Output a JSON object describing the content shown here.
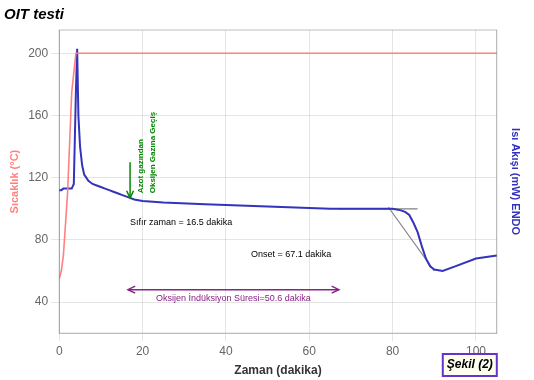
{
  "chart_data": {
    "type": "line",
    "title": "OIT testi",
    "xlabel": "Zaman (dakika)",
    "ylabel": "Sıcaklık (°C)",
    "y2label": "Isı Akışı (mW) ENDO",
    "xlim": [
      0,
      105
    ],
    "ylim": [
      20,
      215
    ],
    "xticks": [
      0,
      20,
      40,
      60,
      80,
      100
    ],
    "yticks": [
      40,
      80,
      120,
      160,
      200
    ],
    "y2lim": [
      20,
      215
    ],
    "y2ticks": [],
    "grid": true,
    "series": [
      {
        "color": "#FF8080",
        "x": [
          0,
          0.5,
          1,
          2,
          3,
          4,
          5,
          5.5,
          6,
          105
        ],
        "values": [
          55,
          60,
          70,
          110,
          175,
          200,
          200,
          200,
          200,
          200
        ]
      },
      {
        "color": "#3333BB",
        "x": [
          0,
          0.5,
          1,
          2,
          3,
          3.5,
          4,
          4.3,
          4.6,
          5,
          5.5,
          6,
          7,
          8,
          9,
          10,
          11,
          12,
          13,
          14,
          15,
          16,
          17,
          18,
          20,
          25,
          35,
          45,
          55,
          65,
          67,
          70,
          75,
          80,
          82,
          83,
          84,
          85,
          86,
          87,
          88,
          89,
          90,
          92,
          95,
          100,
          105
        ],
        "values": [
          112,
          112,
          113,
          113,
          113,
          116,
          175,
          203,
          160,
          140,
          128,
          122,
          118,
          116,
          115,
          114,
          113,
          112,
          111,
          110,
          109,
          108,
          107,
          106,
          105,
          104,
          103,
          102,
          101,
          100,
          100,
          100,
          100,
          100,
          99,
          98,
          96,
          91,
          85,
          76,
          68,
          63,
          61,
          60,
          63,
          68,
          70
        ]
      },
      {
        "color": "gray",
        "x": [
          67,
          86
        ],
        "values": [
          100,
          100
        ]
      },
      {
        "color": "gray",
        "x": [
          79,
          90
        ],
        "values": [
          101,
          60
        ]
      }
    ],
    "arrows": [
      {
        "color": "#008800",
        "x": [
          17,
          17
        ],
        "values": [
          130,
          107
        ],
        "marker": "arrow_end"
      },
      {
        "color": "#882288",
        "x": [
          16.5,
          67.1
        ],
        "values": [
          48,
          48
        ],
        "marker": "arrow_both"
      }
    ],
    "annotations": [
      {
        "text": "Azot gazından",
        "color": "#008800"
      },
      {
        "text": "Oksijen Gazına Geçiş",
        "color": "#008800"
      },
      {
        "text": "Sıfır zaman = 16.5 dakika",
        "color": "black"
      },
      {
        "text": "Onset = 67.1 dakika",
        "color": "black"
      },
      {
        "text": "Oksijen İndüksiyon Süresi=50.6 dakika",
        "color": "#882288"
      },
      {
        "text": "Şekil (2)",
        "color": "#6633CC"
      }
    ]
  }
}
